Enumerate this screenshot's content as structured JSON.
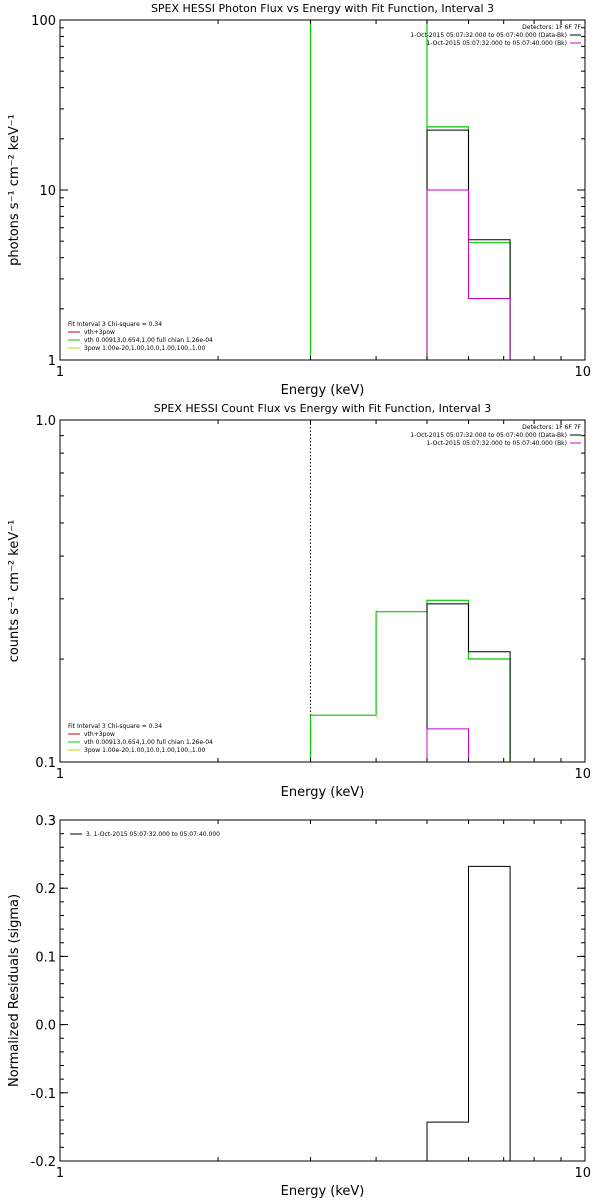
{
  "chart_data": [
    {
      "type": "line",
      "title": "SPEX HESSI Photon Flux vs Energy with Fit Function, Interval 3",
      "xlabel": "Energy (keV)",
      "ylabel": "photons s⁻¹ cm⁻² keV⁻¹",
      "xscale": "log",
      "yscale": "log",
      "xlim": [
        1,
        10
      ],
      "ylim": [
        1,
        100
      ],
      "xticks": [
        {
          "v": 1,
          "label": "1"
        },
        {
          "v": 10,
          "label": "10"
        }
      ],
      "yticks": [
        {
          "v": 1,
          "label": "1"
        },
        {
          "v": 10,
          "label": "10"
        },
        {
          "v": 100,
          "label": "100"
        }
      ],
      "legend_topright": {
        "header": "Detectors: 1F 6F 7F",
        "entries": [
          {
            "label": "1-Oct-2015 05:07:32.000 to 05:07:40.000 (Data-Bk)",
            "color": "#000000"
          },
          {
            "label": "1-Oct-2015 05:07:32.000 to 05:07:40.000 (Bk)",
            "color": "#cc00cc"
          }
        ]
      },
      "legend_bottomleft": {
        "header": "Fit Interval 3   Chi-square = 0.34",
        "entries": [
          {
            "label": "vth+3pow",
            "color": "#cc0000"
          },
          {
            "label": "vth 0.00913,0.654,1.00  full chian 1.26e-04",
            "color": "#00cc00"
          },
          {
            "label": "3pow 1.00e-20,1.00,10.0,1.00,100.,1.00",
            "color": "#cccc00"
          }
        ]
      },
      "vlines": [
        {
          "x": 3.0,
          "color": "#00aa00",
          "style": "dotted"
        }
      ],
      "series": [
        {
          "color": "#00cc00",
          "width": 1.2,
          "x": [
            3.0,
            3.0
          ],
          "y": [
            1,
            100
          ]
        },
        {
          "color": "#00cc00",
          "width": 1.2,
          "x": [
            5.0,
            5.0
          ],
          "y": [
            1,
            100
          ]
        },
        {
          "color": "#00cc00",
          "width": 1.2,
          "x": [
            5.0,
            5.0,
            6.0,
            6.0,
            7.2,
            7.2
          ],
          "y": [
            23.5,
            23.5,
            23.5,
            4.9,
            4.9,
            1
          ]
        },
        {
          "color": "#000000",
          "width": 1.0,
          "x": [
            5.0,
            5.0,
            6.0,
            6.0,
            7.2,
            7.2
          ],
          "y": [
            1,
            22.5,
            22.5,
            5.1,
            5.1,
            1
          ]
        },
        {
          "color": "#cc00cc",
          "width": 1.0,
          "x": [
            5.0,
            5.0,
            6.0,
            6.0,
            7.2,
            7.2
          ],
          "y": [
            1,
            10,
            10,
            2.3,
            2.3,
            1
          ]
        }
      ]
    },
    {
      "type": "line",
      "title": "SPEX HESSI Count Flux vs Energy with Fit Function, Interval 3",
      "xlabel": "Energy (keV)",
      "ylabel": "counts s⁻¹ cm⁻² keV⁻¹",
      "xscale": "log",
      "yscale": "log",
      "xlim": [
        1,
        10
      ],
      "ylim": [
        0.1,
        1.0
      ],
      "xticks": [
        {
          "v": 1,
          "label": "1"
        },
        {
          "v": 10,
          "label": "10"
        }
      ],
      "yticks": [
        {
          "v": 0.1,
          "label": "0.1"
        },
        {
          "v": 1.0,
          "label": "1.0"
        }
      ],
      "legend_topright": {
        "header": "Detectors: 1F 6F 7F",
        "entries": [
          {
            "label": "1-Oct-2015 05:07:32.000 to 05:07:40.000 (Data-Bk)",
            "color": "#000000"
          },
          {
            "label": "1-Oct-2015 05:07:32.000 to 05:07:40.000 (Bk)",
            "color": "#cc00cc"
          }
        ]
      },
      "legend_bottomleft": {
        "header": "Fit Interval 3   Chi-square = 0.34",
        "entries": [
          {
            "label": "vth+3pow",
            "color": "#cc0000"
          },
          {
            "label": "vth 0.00913,0.654,1.00  full chian 1.26e-04",
            "color": "#00cc00"
          },
          {
            "label": "3pow 1.00e-20,1.00,10.0,1.00,100.,1.00",
            "color": "#cccc00"
          }
        ]
      },
      "vlines": [
        {
          "x": 3.0,
          "color": "#000000",
          "style": "dotted"
        }
      ],
      "series": [
        {
          "color": "#00cc00",
          "width": 1.2,
          "x": [
            3.0,
            3.0,
            4.0,
            4.0,
            5.0,
            5.0,
            6.0,
            6.0,
            7.2,
            7.2
          ],
          "y": [
            0.1,
            0.137,
            0.137,
            0.275,
            0.275,
            0.297,
            0.297,
            0.2,
            0.2,
            0.1
          ]
        },
        {
          "color": "#000000",
          "width": 1.0,
          "x": [
            5.0,
            5.0,
            6.0,
            6.0,
            7.2,
            7.2
          ],
          "y": [
            0.1,
            0.29,
            0.29,
            0.21,
            0.21,
            0.1
          ]
        },
        {
          "color": "#cc00cc",
          "width": 1.0,
          "x": [
            5.0,
            5.0,
            6.0,
            6.0
          ],
          "y": [
            0.1,
            0.125,
            0.125,
            0.1
          ]
        }
      ]
    },
    {
      "type": "line",
      "title": "",
      "xlabel": "Energy (keV)",
      "ylabel": "Normalized Residuals (sigma)",
      "xscale": "log",
      "yscale": "linear",
      "xlim": [
        1,
        10
      ],
      "ylim": [
        -0.2,
        0.3
      ],
      "xticks": [
        {
          "v": 1,
          "label": "1"
        },
        {
          "v": 10,
          "label": "10"
        }
      ],
      "yticks": [
        {
          "v": -0.2,
          "label": "-0.2"
        },
        {
          "v": -0.1,
          "label": "-0.1"
        },
        {
          "v": 0.0,
          "label": "0.0"
        },
        {
          "v": 0.1,
          "label": "0.1"
        },
        {
          "v": 0.2,
          "label": "0.2"
        },
        {
          "v": 0.3,
          "label": "0.3"
        }
      ],
      "legend_topleft": {
        "entries": [
          {
            "label": "3.  1-Oct-2015 05:07:32.000 to 05:07:40.000",
            "color": "#000000"
          }
        ]
      },
      "vlines": [],
      "series": [
        {
          "color": "#000000",
          "width": 1.0,
          "x": [
            5.0,
            5.0,
            6.0,
            6.0,
            7.2,
            7.2
          ],
          "y": [
            -0.2,
            -0.143,
            -0.143,
            0.232,
            0.232,
            -0.2
          ]
        }
      ]
    }
  ]
}
